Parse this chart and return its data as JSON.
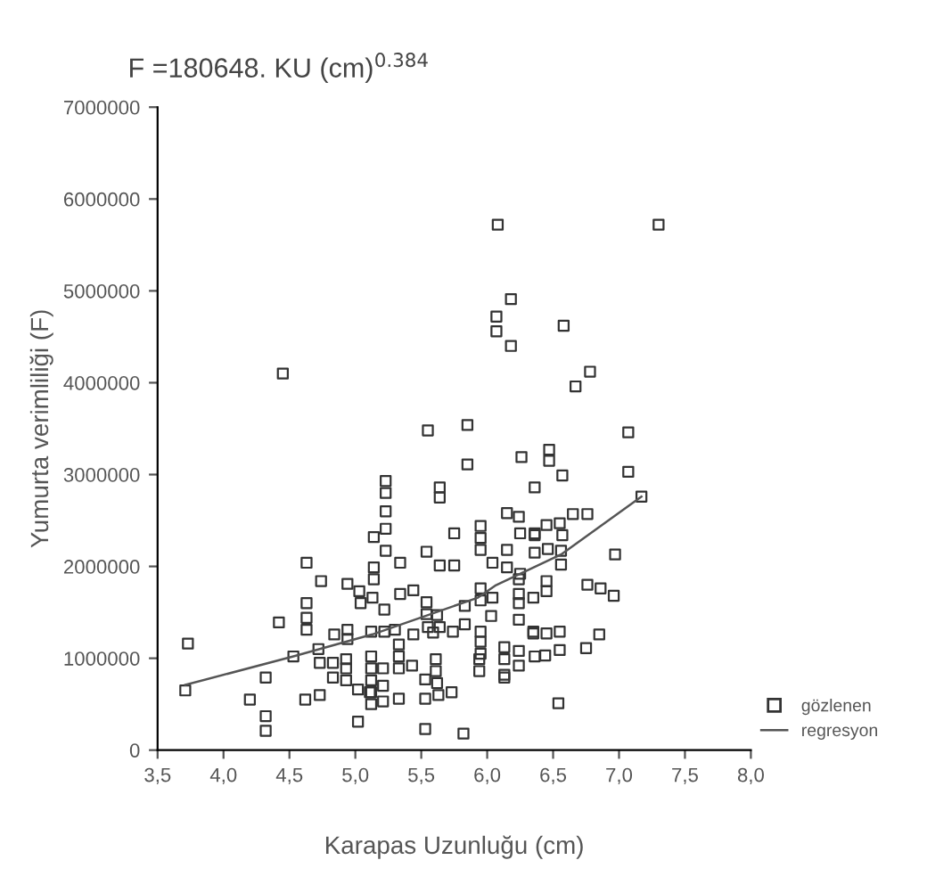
{
  "chart_data": {
    "type": "scatter",
    "title": "F =180648. KU (cm)$^{0.384}$",
    "xlabel": "Karapas Uzunluğu (cm)",
    "ylabel": "Yumurta verimliliği (F)",
    "xlim": [
      3.5,
      8.0
    ],
    "ylim": [
      0,
      7000000
    ],
    "xticks": [
      {
        "value": 3.5,
        "label": "3,5"
      },
      {
        "value": 4.0,
        "label": "4,0"
      },
      {
        "value": 4.5,
        "label": "4,5"
      },
      {
        "value": 5.0,
        "label": "5,0"
      },
      {
        "value": 5.5,
        "label": "5,5"
      },
      {
        "value": 6.0,
        "label": "6,0"
      },
      {
        "value": 6.5,
        "label": "6,5"
      },
      {
        "value": 7.0,
        "label": "7,0"
      },
      {
        "value": 7.5,
        "label": "7,5"
      },
      {
        "value": 8.0,
        "label": "8,0"
      }
    ],
    "yticks": [
      0,
      1000000,
      2000000,
      3000000,
      4000000,
      5000000,
      6000000,
      7000000
    ],
    "grid": false,
    "legend": "right",
    "marker": "square",
    "series": [
      {
        "name": "gözlenen",
        "color": "#333333",
        "x": [
          6.18,
          6.07,
          6.07,
          6.18,
          4.45,
          5.55,
          5.85,
          5.85,
          6.26,
          5.23,
          5.23,
          5.23,
          5.64,
          5.64,
          6.36,
          6.15,
          6.24,
          5.23,
          5.14,
          5.75,
          5.95,
          5.95,
          5.95,
          6.25,
          6.36,
          4.63,
          5.23,
          5.34,
          5.54,
          5.64,
          5.75,
          6.04,
          6.15,
          6.15,
          6.24,
          5.14,
          5.14,
          4.74,
          4.94,
          5.03,
          5.44,
          5.34,
          5.13,
          5.22,
          5.04,
          5.54,
          5.54,
          5.62,
          5.95,
          5.95,
          6.04,
          6.24,
          6.24,
          6.24,
          5.83,
          5.83,
          6.03,
          4.63,
          4.63,
          4.63,
          4.42,
          3.73,
          4.94,
          4.94,
          4.84,
          5.12,
          5.22,
          5.3,
          5.44,
          5.55,
          5.59,
          5.64,
          5.74,
          5.95,
          5.95,
          5.95,
          6.35,
          4.53,
          4.72,
          4.73,
          4.83,
          4.83,
          4.93,
          4.93,
          4.93,
          5.12,
          5.12,
          5.12,
          5.12,
          5.12,
          5.21,
          5.21,
          5.21,
          5.33,
          5.33,
          5.33,
          5.43,
          5.61,
          5.61,
          5.94,
          5.94,
          6.13,
          6.13,
          6.13,
          6.24,
          6.24,
          6.36,
          5.53,
          5.62,
          5.02,
          5.11,
          5.53,
          5.63,
          5.73,
          5.33,
          4.73,
          4.62,
          4.32,
          4.2,
          3.71,
          4.32,
          4.32,
          5.02,
          5.53,
          5.82,
          6.13,
          7.3,
          6.08,
          6.58,
          6.78,
          6.67,
          7.07,
          7.07,
          6.47,
          6.47,
          6.57,
          7.17,
          6.65,
          6.76,
          6.45,
          6.55,
          6.36,
          6.57,
          6.36,
          6.46,
          6.56,
          6.56,
          6.97,
          6.25,
          6.76,
          6.86,
          6.96,
          6.45,
          6.45,
          6.35,
          6.35,
          6.45,
          6.55,
          6.85,
          6.44,
          6.55,
          6.75,
          6.54
        ],
        "values": [
          4910000,
          4720000,
          4560000,
          4400000,
          4100000,
          3480000,
          3540000,
          3110000,
          3190000,
          2930000,
          2800000,
          2600000,
          2860000,
          2750000,
          2860000,
          2580000,
          2540000,
          2410000,
          2320000,
          2360000,
          2440000,
          2310000,
          2180000,
          2360000,
          2360000,
          2040000,
          2170000,
          2040000,
          2160000,
          2010000,
          2010000,
          2040000,
          2180000,
          1990000,
          1860000,
          1990000,
          1860000,
          1840000,
          1810000,
          1730000,
          1740000,
          1700000,
          1660000,
          1530000,
          1600000,
          1610000,
          1480000,
          1470000,
          1760000,
          1630000,
          1660000,
          1700000,
          1600000,
          1420000,
          1570000,
          1370000,
          1460000,
          1600000,
          1440000,
          1310000,
          1390000,
          1160000,
          1310000,
          1210000,
          1260000,
          1290000,
          1290000,
          1310000,
          1260000,
          1340000,
          1280000,
          1340000,
          1290000,
          1290000,
          1180000,
          1050000,
          1290000,
          1020000,
          1100000,
          950000,
          950000,
          790000,
          990000,
          890000,
          760000,
          1020000,
          890000,
          760000,
          630000,
          500000,
          890000,
          700000,
          530000,
          1150000,
          1020000,
          890000,
          920000,
          990000,
          860000,
          990000,
          860000,
          1120000,
          990000,
          820000,
          1080000,
          920000,
          1020000,
          770000,
          730000,
          660000,
          630000,
          560000,
          600000,
          630000,
          560000,
          600000,
          550000,
          790000,
          550000,
          650000,
          370000,
          210000,
          310000,
          230000,
          180000,
          790000,
          5720000,
          5720000,
          4620000,
          4120000,
          3960000,
          3460000,
          3030000,
          3270000,
          3150000,
          2990000,
          2760000,
          2570000,
          2570000,
          2450000,
          2470000,
          2340000,
          2340000,
          2150000,
          2190000,
          2170000,
          2020000,
          2130000,
          1920000,
          1800000,
          1760000,
          1680000,
          1840000,
          1730000,
          1660000,
          1270000,
          1270000,
          1290000,
          1260000,
          1030000,
          1090000,
          1110000,
          510000
        ]
      },
      {
        "name": "regresyon",
        "type": "line",
        "color": "#555555",
        "line_style": "solid",
        "marker": "none",
        "x": [
          3.71,
          4.53,
          5.13,
          5.93,
          6.06,
          6.56,
          7.17
        ],
        "values": [
          710000,
          1020000,
          1260000,
          1660000,
          1790000,
          2130000,
          2760000
        ]
      }
    ]
  }
}
